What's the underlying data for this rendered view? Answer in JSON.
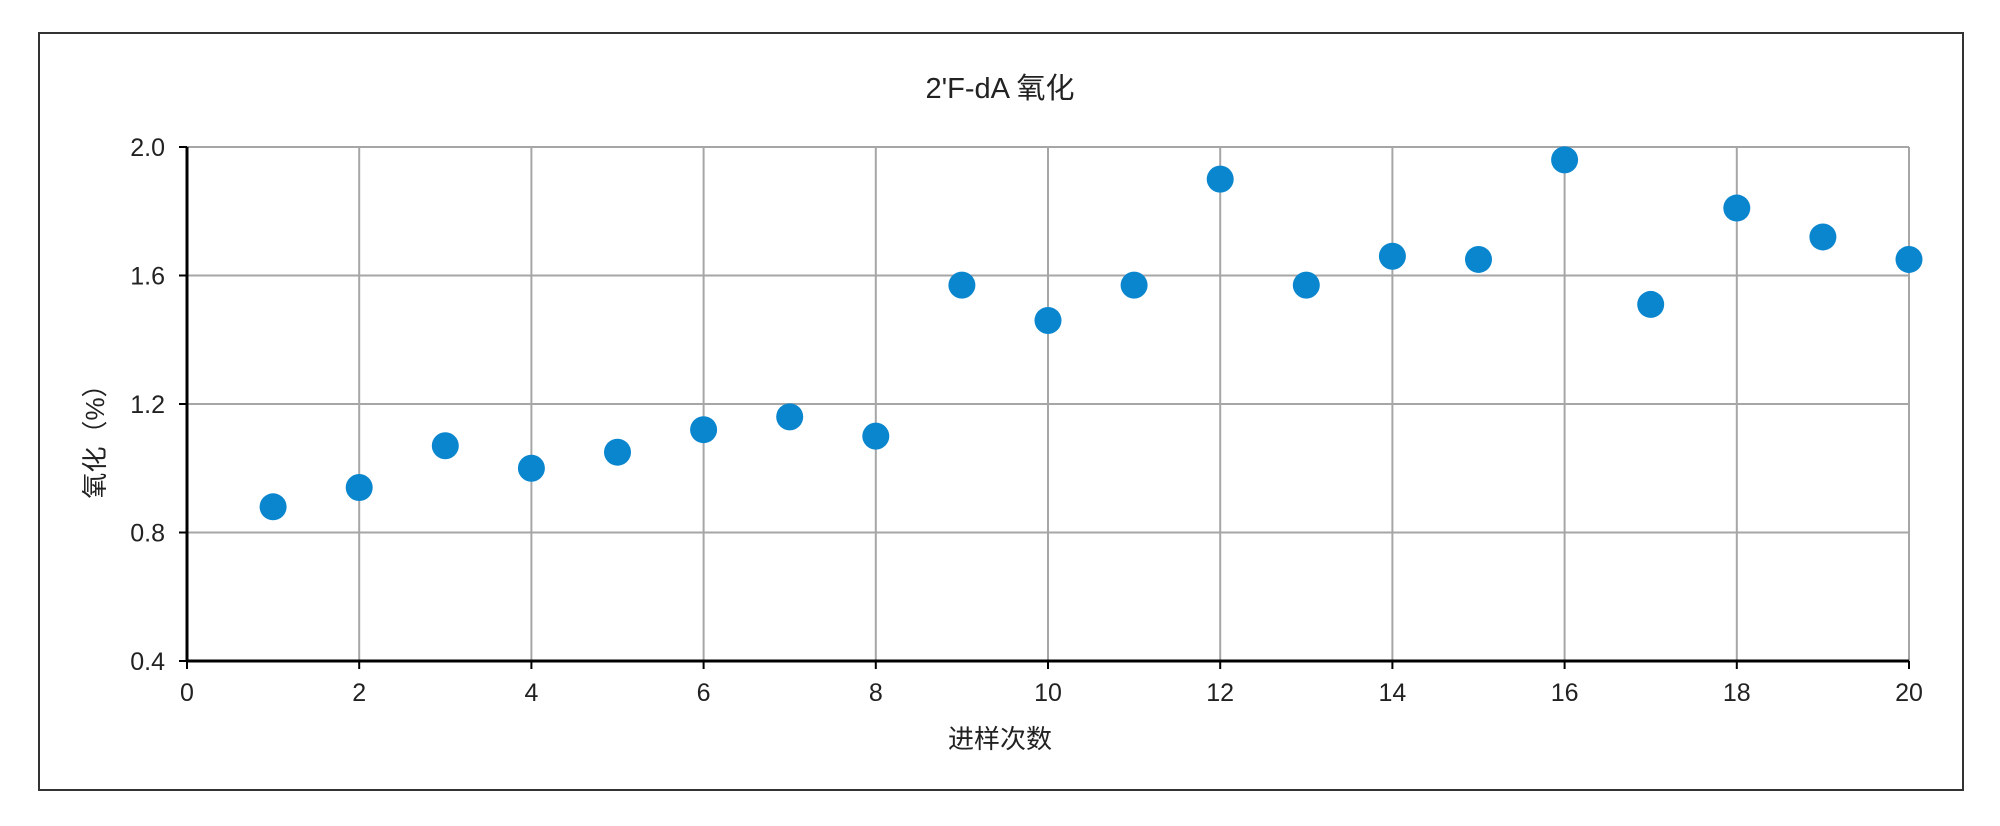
{
  "chart_data": {
    "type": "scatter",
    "title": "2'F-dA 氧化",
    "xlabel": "进样次数",
    "ylabel": "氧化（%）",
    "xlim": [
      0,
      20
    ],
    "ylim": [
      0.4,
      2.0
    ],
    "xticks": [
      0,
      2,
      4,
      6,
      8,
      10,
      12,
      14,
      16,
      18,
      20
    ],
    "yticks": [
      "0.4",
      "0.8",
      "1.2",
      "1.6",
      "2.0"
    ],
    "grid": true,
    "legend": "none",
    "marker_color": "#0a86cf",
    "series": [
      {
        "x": [
          1,
          2,
          3,
          4,
          5,
          6,
          7,
          8,
          9,
          10,
          11,
          12,
          13,
          14,
          15,
          16,
          17,
          18,
          19,
          20
        ],
        "y": [
          0.88,
          0.94,
          1.07,
          1.0,
          1.05,
          1.12,
          1.16,
          1.1,
          1.57,
          1.46,
          1.57,
          1.9,
          1.57,
          1.66,
          1.65,
          1.96,
          1.51,
          1.81,
          1.72,
          1.65
        ]
      }
    ]
  }
}
